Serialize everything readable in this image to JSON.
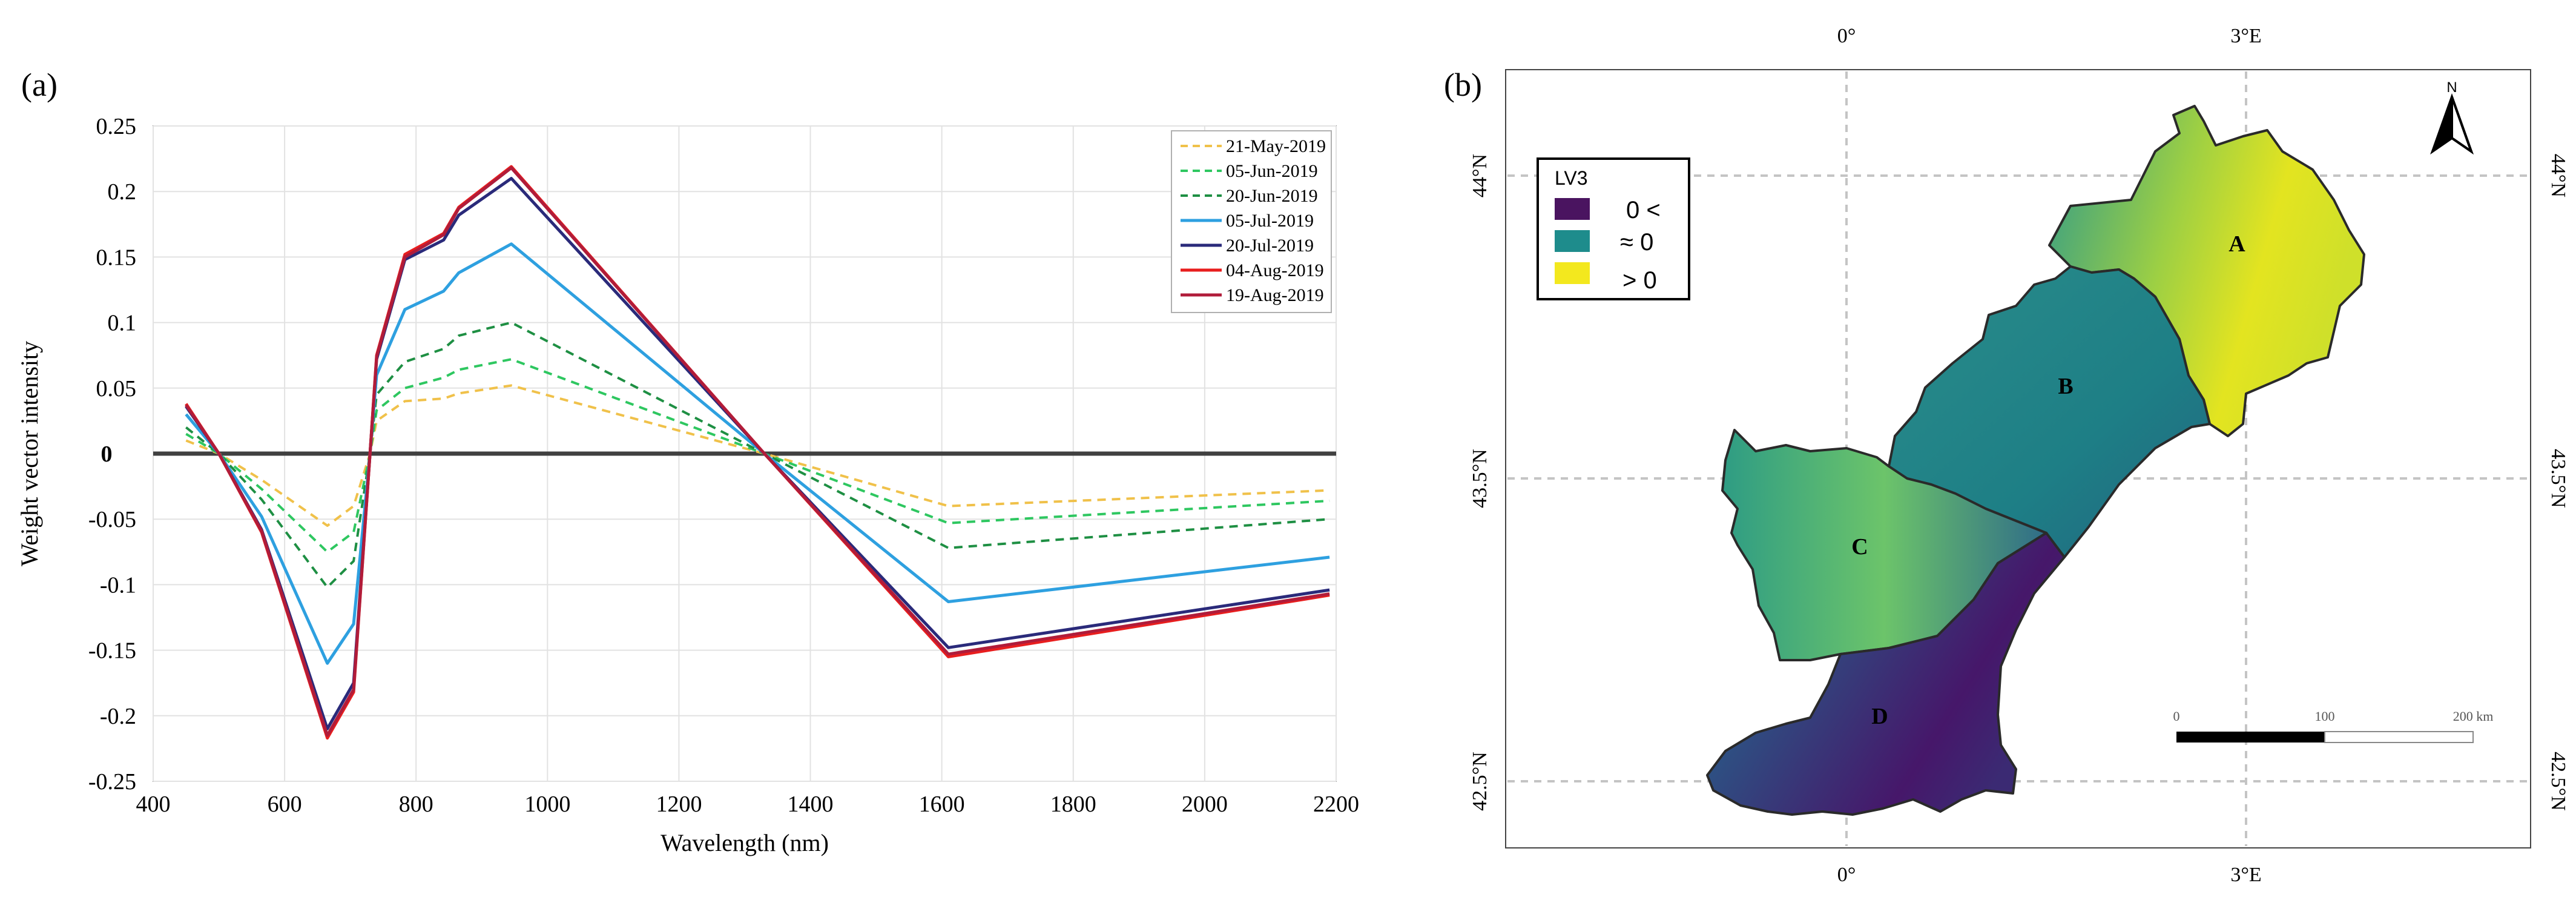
{
  "panel_a": {
    "label": "(a)"
  },
  "panel_b": {
    "label": "(b)"
  },
  "chart_data": {
    "type": "line",
    "title": "",
    "xlabel": "Wavelength (nm)",
    "ylabel": "Weight vector intensity",
    "xlim": [
      400,
      2200
    ],
    "ylim": [
      -0.25,
      0.25
    ],
    "xticks": [
      400,
      600,
      800,
      1000,
      1200,
      1400,
      1600,
      1800,
      2000,
      2200
    ],
    "yticks": [
      0.25,
      0.2,
      0.15,
      0.1,
      0.05,
      0,
      -0.05,
      -0.1,
      -0.15,
      -0.2,
      -0.25
    ],
    "ytick_labels": [
      "0.25",
      "0.2",
      "0.15",
      "0.1",
      "0.05",
      "0",
      "-0.05",
      "-0.1",
      "-0.15",
      "-0.2",
      "-0.25"
    ],
    "zero_line": {
      "y": 0,
      "color": "#404040"
    },
    "grid": true,
    "legend_position": "top-right",
    "x": [
      450,
      500,
      565,
      665,
      705,
      730,
      740,
      783,
      842,
      865,
      945,
      1330,
      1610,
      2190
    ],
    "series": [
      {
        "name": "21-May-2019",
        "color": "#f0c14a",
        "dash": true,
        "values": [
          0.01,
          0,
          -0.02,
          -0.055,
          -0.04,
          0,
          0.025,
          0.04,
          0.042,
          0.046,
          0.052,
          0,
          -0.04,
          -0.028
        ]
      },
      {
        "name": "05-Jun-2019",
        "color": "#2ec760",
        "dash": true,
        "values": [
          0.015,
          0,
          -0.027,
          -0.075,
          -0.06,
          0,
          0.033,
          0.05,
          0.058,
          0.064,
          0.072,
          0,
          -0.053,
          -0.036
        ]
      },
      {
        "name": "20-Jun-2019",
        "color": "#1e8f43",
        "dash": true,
        "values": [
          0.02,
          0,
          -0.035,
          -0.102,
          -0.082,
          0,
          0.045,
          0.07,
          0.08,
          0.09,
          0.1,
          0,
          -0.072,
          -0.05
        ]
      },
      {
        "name": "05-Jul-2019",
        "color": "#2ea0e0",
        "dash": false,
        "values": [
          0.03,
          0,
          -0.048,
          -0.16,
          -0.13,
          0,
          0.06,
          0.11,
          0.124,
          0.138,
          0.16,
          0,
          -0.113,
          -0.079
        ]
      },
      {
        "name": "20-Jul-2019",
        "color": "#2a2a7a",
        "dash": false,
        "values": [
          0.036,
          0,
          -0.058,
          -0.21,
          -0.175,
          0,
          0.072,
          0.148,
          0.163,
          0.182,
          0.21,
          0,
          -0.148,
          -0.104
        ]
      },
      {
        "name": "04-Aug-2019",
        "color": "#e81e1e",
        "dash": false,
        "values": [
          0.038,
          0,
          -0.06,
          -0.217,
          -0.182,
          0,
          0.075,
          0.152,
          0.168,
          0.188,
          0.219,
          0,
          -0.155,
          -0.108
        ]
      },
      {
        "name": "19-Aug-2019",
        "color": "#b01c3a",
        "dash": false,
        "values": [
          0.037,
          0,
          -0.059,
          -0.215,
          -0.18,
          0,
          0.074,
          0.15,
          0.167,
          0.187,
          0.218,
          0,
          -0.153,
          -0.107
        ]
      }
    ]
  },
  "map": {
    "top_longitudes": [
      "0°",
      "3°E"
    ],
    "bottom_longitudes": [
      "0°",
      "3°E"
    ],
    "left_latitudes": [
      "44°N",
      "43.5°N",
      "42.5°N"
    ],
    "right_latitudes": [
      "44°N",
      "43.5°N",
      "42.5°N"
    ],
    "north_label": "N",
    "legend": {
      "title": "LV3",
      "items": [
        {
          "label": "0 <",
          "color": "#4a1460"
        },
        {
          "label": "≈ 0",
          "color": "#1e8c8c"
        },
        {
          "label": "> 0",
          "color": "#f3e81e"
        }
      ]
    },
    "regions": [
      "A",
      "B",
      "C",
      "D"
    ],
    "scale_labels": [
      "0",
      "100",
      "200 km"
    ]
  }
}
